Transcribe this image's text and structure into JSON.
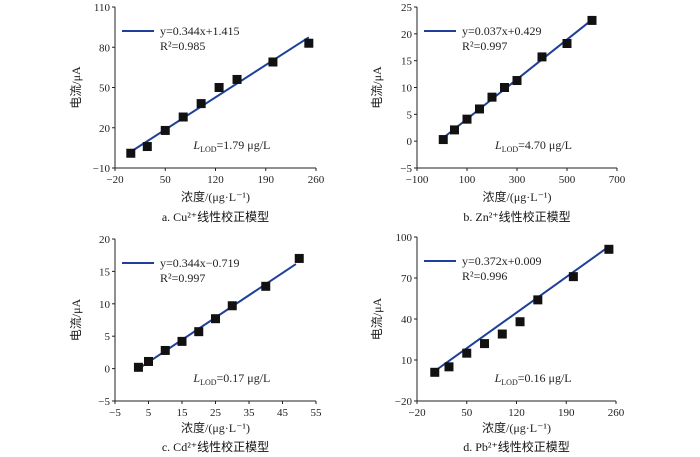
{
  "colors": {
    "fit_line": "#1f3f99",
    "marker": "#111111",
    "axis": "#222222"
  },
  "chart_data": [
    {
      "type": "scatter",
      "caption": "a.  Cu²⁺线性校正模型",
      "xlabel": "浓度/(μg·L⁻¹)",
      "ylabel": "电流/μA",
      "xlim": [
        -20,
        260
      ],
      "ylim": [
        -10,
        110
      ],
      "xticks": [
        -20,
        50,
        120,
        190,
        260
      ],
      "yticks": [
        -10,
        20,
        50,
        80,
        110
      ],
      "x": [
        2,
        25,
        50,
        75,
        100,
        125,
        150,
        200,
        250
      ],
      "y": [
        1,
        6,
        18,
        28,
        38,
        50,
        56,
        69,
        83
      ],
      "fit": {
        "slope": 0.344,
        "intercept": 1.415,
        "x_range": [
          2,
          250
        ]
      },
      "equation": "y=0.344x+1.415",
      "r2": "R²=0.985",
      "lod": "LLOD=1.79 μg/L",
      "lod_main": "L",
      "lod_sub": "LOD",
      "lod_value": "=1.79 μg/L",
      "legend": "top-left"
    },
    {
      "type": "scatter",
      "caption": "b.  Zn²⁺线性校正模型",
      "xlabel": "浓度/(μg·L⁻¹)",
      "ylabel": "电流/μA",
      "xlim": [
        -100,
        700
      ],
      "ylim": [
        -5,
        25
      ],
      "xticks": [
        -100,
        100,
        300,
        500,
        700
      ],
      "yticks": [
        -5,
        0,
        5,
        10,
        15,
        20,
        25
      ],
      "x": [
        5,
        50,
        100,
        150,
        200,
        250,
        300,
        400,
        500,
        600
      ],
      "y": [
        0.3,
        2.1,
        4.1,
        6.0,
        8.2,
        10.0,
        11.3,
        15.7,
        18.2,
        22.5
      ],
      "fit": {
        "slope": 0.037,
        "intercept": 0.429,
        "x_range": [
          5,
          590
        ]
      },
      "equation": "y=0.037x+0.429",
      "r2": "R²=0.997",
      "lod_main": "L",
      "lod_sub": "LOD",
      "lod_value": "=4.70 μg/L",
      "legend": "top-left"
    },
    {
      "type": "scatter",
      "caption": "c.  Cd²⁺线性校正模型",
      "xlabel": "浓度/(μg·L⁻¹)",
      "ylabel": "电流/μA",
      "xlim": [
        -5,
        55
      ],
      "ylim": [
        -5,
        20
      ],
      "xticks": [
        -5,
        5,
        15,
        25,
        35,
        45,
        55
      ],
      "yticks": [
        -5,
        0,
        5,
        10,
        15,
        20
      ],
      "x": [
        2,
        5,
        10,
        15,
        20,
        25,
        30,
        40,
        50
      ],
      "y": [
        0.2,
        1.1,
        2.8,
        4.2,
        5.7,
        7.7,
        9.7,
        12.7,
        17.0
      ],
      "fit": {
        "slope": 0.344,
        "intercept": -0.719,
        "x_range": [
          2,
          49
        ]
      },
      "equation": "y=0.344x−0.719",
      "r2": "R²=0.997",
      "lod_main": "L",
      "lod_sub": "LOD",
      "lod_value": "=0.17 μg/L",
      "legend": "top-left"
    },
    {
      "type": "scatter",
      "caption": "d.  Pb²⁺线性校正模型",
      "xlabel": "浓度/(μg·L⁻¹)",
      "ylabel": "电流/μA",
      "xlim": [
        -20,
        260
      ],
      "ylim": [
        -20,
        100
      ],
      "xticks": [
        -20,
        50,
        120,
        190,
        260
      ],
      "yticks": [
        -20,
        10,
        40,
        70,
        100
      ],
      "x": [
        5,
        25,
        50,
        75,
        100,
        125,
        150,
        200,
        250
      ],
      "y": [
        1,
        5,
        15,
        22,
        29,
        38,
        54,
        71,
        91
      ],
      "fit": {
        "slope": 0.372,
        "intercept": 0.009,
        "x_range": [
          5,
          245
        ]
      },
      "equation": "y=0.372x+0.009",
      "r2": "R²=0.996",
      "lod_main": "L",
      "lod_sub": "LOD",
      "lod_value": "=0.16 μg/L",
      "legend": "top-left"
    }
  ]
}
